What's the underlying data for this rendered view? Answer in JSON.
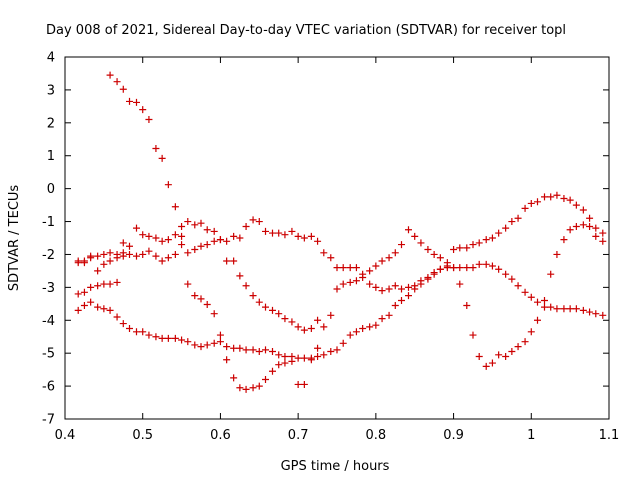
{
  "chart_data": {
    "type": "scatter",
    "title": "Day 008 of 2021, Sidereal Day-to-day VTEC variation (SDTVAR) for receiver topl",
    "xlabel": "GPS time / hours",
    "ylabel": "SDTVAR / TECUs",
    "xlim": [
      0.4,
      1.1
    ],
    "ylim": [
      -7,
      4
    ],
    "xticks": [
      "0.4",
      "0.5",
      "0.6",
      "0.7",
      "0.8",
      "0.9",
      "1",
      "1.1"
    ],
    "yticks": [
      "-7",
      "-6",
      "-5",
      "-4",
      "-3",
      "-2",
      "-1",
      "0",
      "1",
      "2",
      "3",
      "4"
    ],
    "marker": "+",
    "color": "#cc0000",
    "series": [
      {
        "name": "series-1",
        "x": [
          0.458,
          0.467,
          0.475,
          0.483,
          0.492,
          0.5,
          0.508,
          0.517,
          0.525,
          0.533,
          0.542,
          0.55,
          0.558,
          0.567,
          0.575,
          0.583,
          0.592,
          0.6,
          0.608,
          0.617,
          0.625,
          0.633,
          0.642,
          0.65,
          0.658,
          0.667,
          0.675,
          0.683,
          0.692,
          0.7,
          0.708,
          0.717,
          0.725,
          0.733,
          0.742,
          0.75,
          0.758,
          0.767,
          0.775,
          0.783,
          0.792,
          0.8,
          0.808,
          0.817,
          0.825,
          0.833,
          0.842,
          0.85,
          0.858,
          0.867,
          0.875,
          0.883,
          0.892,
          0.9,
          0.908,
          0.917,
          0.925,
          0.933,
          0.942,
          0.95,
          0.958,
          0.967,
          0.975,
          0.983,
          0.992,
          1.0,
          1.008,
          1.017,
          1.025,
          1.033,
          1.042,
          1.05,
          1.058,
          1.067,
          1.075,
          1.083,
          1.092
        ],
        "y": [
          3.45,
          3.25,
          3.02,
          2.65,
          2.62,
          2.4,
          2.1,
          1.22,
          0.92,
          0.12,
          -0.55,
          -1.45,
          -2.9,
          -3.25,
          -3.35,
          -3.52,
          -3.8,
          -4.45,
          -5.2,
          -5.75,
          -6.05,
          -6.1,
          -6.05,
          -6.0,
          -5.8,
          -5.55,
          -5.35,
          -5.3,
          -5.25,
          -5.95,
          -5.95,
          -5.2,
          -4.85,
          -4.2,
          -3.85,
          -3.05,
          -2.9,
          -2.85,
          -2.8,
          -2.7,
          -2.5,
          -2.35,
          -2.2,
          -2.1,
          -1.95,
          -1.7,
          -1.25,
          -1.45,
          -1.65,
          -1.85,
          -2.0,
          -2.1,
          -2.25,
          -2.4,
          -2.9,
          -3.55,
          -4.45,
          -5.1,
          -5.4,
          -5.3,
          -5.05,
          -5.1,
          -4.95,
          -4.8,
          -4.65,
          -4.35,
          -4.0,
          -3.4,
          -2.6,
          -2.0,
          -1.55,
          -1.25,
          -1.15,
          -1.1,
          -1.15,
          -1.45,
          -1.6
        ]
      },
      {
        "name": "series-2",
        "x": [
          0.417,
          0.425,
          0.433,
          0.442,
          0.45,
          0.458,
          0.467,
          0.475,
          0.483,
          0.492,
          0.5,
          0.508,
          0.517,
          0.525,
          0.533,
          0.542,
          0.55,
          0.558,
          0.567,
          0.575,
          0.583,
          0.592,
          0.6,
          0.608,
          0.617,
          0.625,
          0.633,
          0.642,
          0.65,
          0.658,
          0.667,
          0.675,
          0.683,
          0.692,
          0.7,
          0.708,
          0.717,
          0.725,
          0.733,
          0.742,
          0.75,
          0.758,
          0.767,
          0.775,
          0.783,
          0.792,
          0.8,
          0.808,
          0.817,
          0.825,
          0.833,
          0.842,
          0.85,
          0.858,
          0.867,
          0.875,
          0.883,
          0.892,
          0.9,
          0.908,
          0.917,
          0.925,
          0.933,
          0.942,
          0.95,
          0.958,
          0.967,
          0.975,
          0.983,
          0.992,
          1.0,
          1.008,
          1.017,
          1.025,
          1.033,
          1.042,
          1.05,
          1.058,
          1.067,
          1.075,
          1.083,
          1.092
        ],
        "y": [
          -3.7,
          -3.55,
          -3.45,
          -3.6,
          -3.65,
          -3.7,
          -3.9,
          -4.1,
          -4.25,
          -4.35,
          -4.35,
          -4.45,
          -4.5,
          -4.55,
          -4.55,
          -4.55,
          -4.6,
          -4.65,
          -4.75,
          -4.8,
          -4.75,
          -4.7,
          -4.65,
          -4.8,
          -4.85,
          -4.85,
          -4.9,
          -4.9,
          -4.95,
          -4.9,
          -4.95,
          -5.05,
          -5.1,
          -5.1,
          -5.15,
          -5.15,
          -5.15,
          -5.1,
          -5.05,
          -4.95,
          -4.9,
          -4.7,
          -4.45,
          -4.35,
          -4.25,
          -4.2,
          -4.15,
          -3.95,
          -3.85,
          -3.55,
          -3.4,
          -3.25,
          -3.05,
          -2.9,
          -2.75,
          -2.6,
          -2.45,
          -2.35,
          -2.4,
          -2.4,
          -2.4,
          -2.4,
          -2.3,
          -2.3,
          -2.35,
          -2.45,
          -2.6,
          -2.75,
          -2.95,
          -3.15,
          -3.3,
          -3.45,
          -3.6,
          -3.6,
          -3.65,
          -3.65,
          -3.65,
          -3.65,
          -3.7,
          -3.75,
          -3.8,
          -3.85
        ]
      },
      {
        "name": "series-3",
        "x": [
          0.417,
          0.425,
          0.433,
          0.442,
          0.45,
          0.458,
          0.467,
          0.475,
          0.483,
          0.492,
          0.5,
          0.508,
          0.517,
          0.525,
          0.533,
          0.542,
          0.55,
          0.558,
          0.567,
          0.575,
          0.583,
          0.592,
          0.6,
          0.608,
          0.617,
          0.625,
          0.633,
          0.642,
          0.65,
          0.658,
          0.667,
          0.675,
          0.683,
          0.692,
          0.7,
          0.708,
          0.717,
          0.725,
          0.733,
          0.742,
          0.75,
          0.758,
          0.767,
          0.775,
          0.783,
          0.792,
          0.8,
          0.808,
          0.817,
          0.825,
          0.833,
          0.842,
          0.85,
          0.858,
          0.867,
          0.875,
          0.883,
          0.892,
          0.9,
          0.908,
          0.917,
          0.925,
          0.933,
          0.942,
          0.95,
          0.958,
          0.967,
          0.975,
          0.983,
          0.992,
          1.0,
          1.008,
          1.017,
          1.025,
          1.033,
          1.042,
          1.05,
          1.058,
          1.067,
          1.075,
          1.083,
          1.092
        ],
        "y": [
          -2.25,
          -2.25,
          -2.1,
          -2.05,
          -2.0,
          -1.95,
          -2.0,
          -1.95,
          -2.0,
          -1.2,
          -1.4,
          -1.45,
          -1.5,
          -1.6,
          -1.55,
          -1.4,
          -1.15,
          -1.0,
          -1.1,
          -1.05,
          -1.25,
          -1.3,
          -1.55,
          -1.6,
          -1.45,
          -1.5,
          -1.15,
          -0.95,
          -1.0,
          -1.3,
          -1.35,
          -1.35,
          -1.4,
          -1.3,
          -1.45,
          -1.5,
          -1.45,
          -1.6,
          -1.95,
          -2.1,
          -2.4,
          -2.4,
          -2.4,
          -2.4,
          -2.6,
          -2.9,
          -3.0,
          -3.1,
          -3.05,
          -2.95,
          -3.05,
          -3.0,
          -2.95,
          -2.8,
          -2.7,
          -2.55,
          -2.45,
          -2.4,
          -1.85,
          -1.8,
          -1.8,
          -1.7,
          -1.65,
          -1.55,
          -1.5,
          -1.35,
          -1.2,
          -1.0,
          -0.9,
          -0.6,
          -0.45,
          -0.4,
          -0.25,
          -0.25,
          -0.2,
          -0.3,
          -0.35,
          -0.5,
          -0.65,
          -0.9,
          -1.2,
          -1.35
        ]
      },
      {
        "name": "series-4",
        "x": [
          0.417,
          0.425,
          0.433,
          0.442,
          0.45,
          0.458,
          0.467,
          0.475,
          0.483,
          0.492,
          0.5,
          0.508,
          0.517,
          0.525,
          0.533,
          0.542,
          0.55,
          0.558,
          0.567,
          0.575,
          0.583,
          0.592,
          0.6,
          0.608,
          0.617,
          0.625,
          0.633,
          0.642,
          0.65,
          0.658,
          0.667,
          0.675,
          0.683,
          0.692,
          0.7,
          0.708,
          0.717,
          0.725
        ],
        "y": [
          -3.2,
          -3.15,
          -3.0,
          -2.95,
          -2.9,
          -2.9,
          -2.85,
          -1.65,
          -1.75,
          -2.05,
          -2.0,
          -1.9,
          -2.05,
          -2.2,
          -2.1,
          -2.0,
          -1.7,
          -1.95,
          -1.85,
          -1.75,
          -1.7,
          -1.6,
          -1.55,
          -2.2,
          -2.2,
          -2.65,
          -2.95,
          -3.25,
          -3.45,
          -3.6,
          -3.7,
          -3.8,
          -3.95,
          -4.05,
          -4.2,
          -4.3,
          -4.25,
          -4.0
        ]
      },
      {
        "name": "series-5",
        "x": [
          0.417,
          0.425,
          0.433,
          0.442,
          0.45,
          0.458,
          0.467,
          0.475
        ],
        "y": [
          -2.2,
          -2.2,
          -2.05,
          -2.5,
          -2.3,
          -2.2,
          -2.1,
          -2.05
        ]
      }
    ]
  }
}
